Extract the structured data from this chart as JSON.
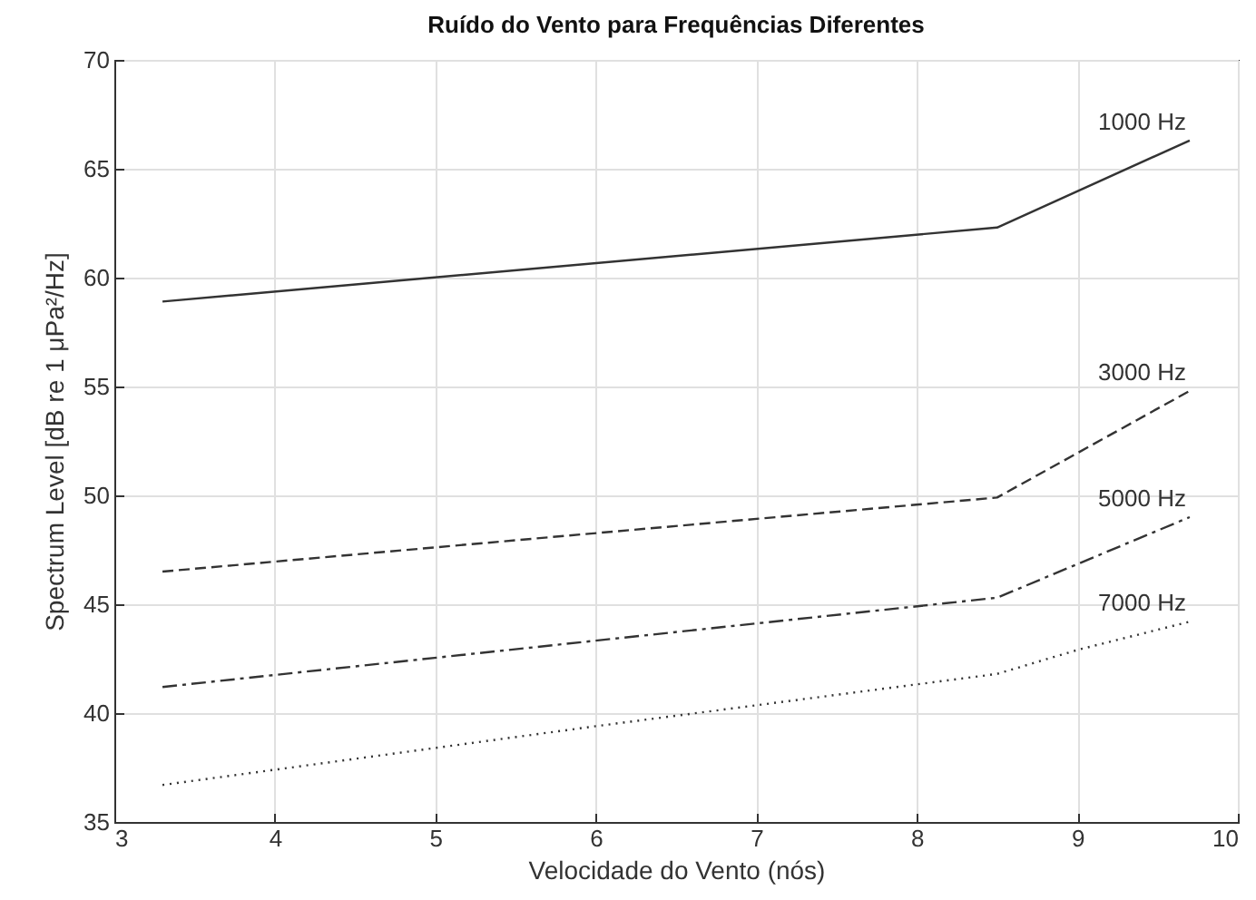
{
  "chart_data": {
    "type": "line",
    "title": "Ruído do Vento para Frequências Diferentes",
    "xlabel": "Velocidade do Vento (nós)",
    "ylabel": "Spectrum Level [dB re 1 μPa²/Hz]",
    "xlim": [
      3,
      10
    ],
    "xticks": [
      3,
      4,
      5,
      6,
      7,
      8,
      9,
      10
    ],
    "ylim": [
      35,
      70
    ],
    "yticks": [
      35,
      40,
      45,
      50,
      55,
      60,
      65,
      70
    ],
    "grid": true,
    "marker": "none",
    "series": [
      {
        "name": "1000 Hz",
        "color": "#333333",
        "line_style": "solid",
        "x": [
          3.3,
          8.5,
          9.7
        ],
        "values": [
          58.9,
          62.3,
          66.3
        ]
      },
      {
        "name": "3000 Hz",
        "color": "#333333",
        "line_style": "dashed",
        "x": [
          3.3,
          8.5,
          9.7
        ],
        "values": [
          46.5,
          49.9,
          54.8
        ]
      },
      {
        "name": "5000 Hz",
        "color": "#333333",
        "line_style": "dashdot",
        "x": [
          3.3,
          8.5,
          9.7
        ],
        "values": [
          41.2,
          45.3,
          49.0
        ]
      },
      {
        "name": "7000 Hz",
        "color": "#333333",
        "line_style": "dotted",
        "x": [
          3.3,
          6,
          8.5,
          9,
          9.7
        ],
        "values": [
          36.7,
          39.4,
          41.8,
          42.9,
          44.2
        ]
      }
    ]
  }
}
